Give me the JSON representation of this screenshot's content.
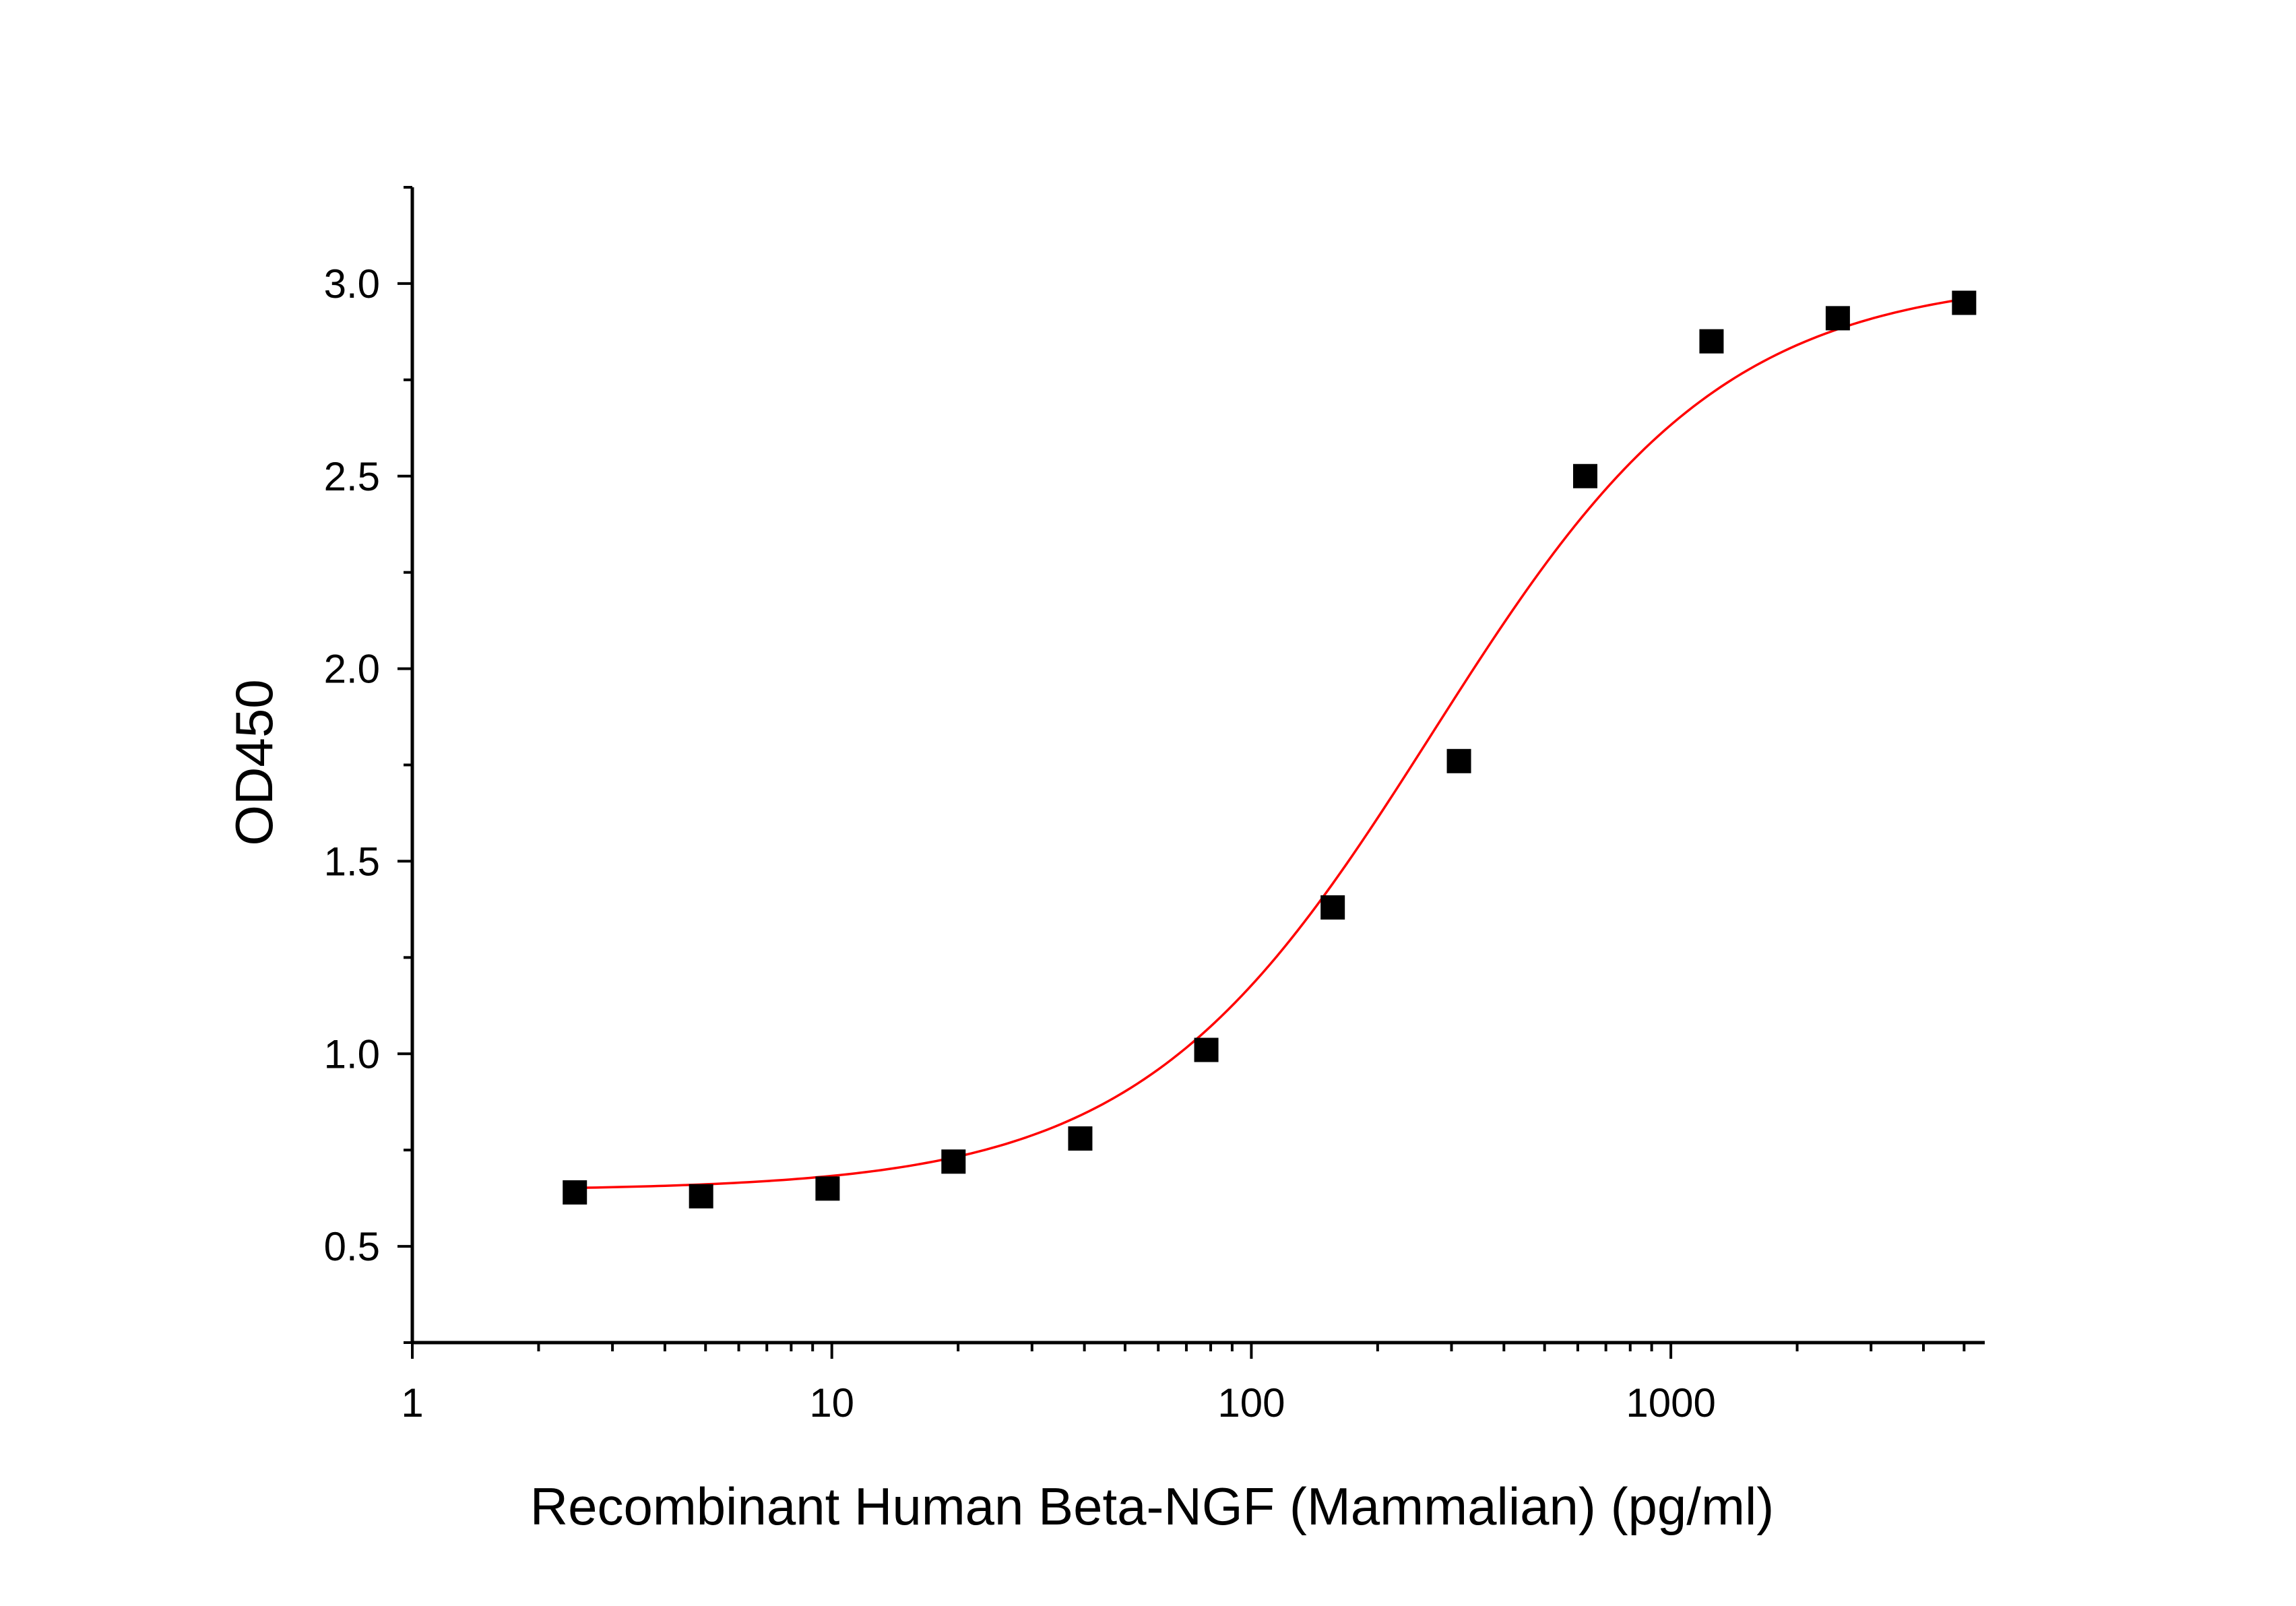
{
  "colors": {
    "background": "#ffffff",
    "axis": "#000000",
    "points": "#000000",
    "fit_line": "#ff0000"
  },
  "chart_data": {
    "type": "scatter",
    "xlabel": "Recombinant Human Beta-NGF (Mammalian) (pg/ml)",
    "ylabel": "OD450",
    "x_scale": "log",
    "xlim": [
      1,
      5600
    ],
    "ylim": [
      0.25,
      3.25
    ],
    "x_ticks": [
      1,
      10,
      100,
      1000
    ],
    "x_tick_labels": [
      "1",
      "10",
      "100",
      "1000"
    ],
    "y_ticks": [
      0.5,
      1.0,
      1.5,
      2.0,
      2.5,
      3.0
    ],
    "y_tick_labels": [
      "0.5",
      "1.0",
      "1.5",
      "2.0",
      "2.5",
      "3.0"
    ],
    "grid": false,
    "legend": "none",
    "series": [
      {
        "marker": "square",
        "x": [
          2.44,
          4.88,
          9.77,
          19.5,
          39.1,
          78.1,
          156.3,
          312.5,
          625,
          1250,
          2500,
          5000
        ],
        "y": [
          0.64,
          0.63,
          0.65,
          0.72,
          0.78,
          1.01,
          1.38,
          1.76,
          2.5,
          2.85,
          2.91,
          2.95
        ]
      }
    ],
    "fit": {
      "type": "four-parameter logistic",
      "bottom": 0.645,
      "top": 3.02,
      "ec50": 270,
      "hill": 1.25,
      "x_range": [
        2.44,
        5000
      ]
    }
  }
}
